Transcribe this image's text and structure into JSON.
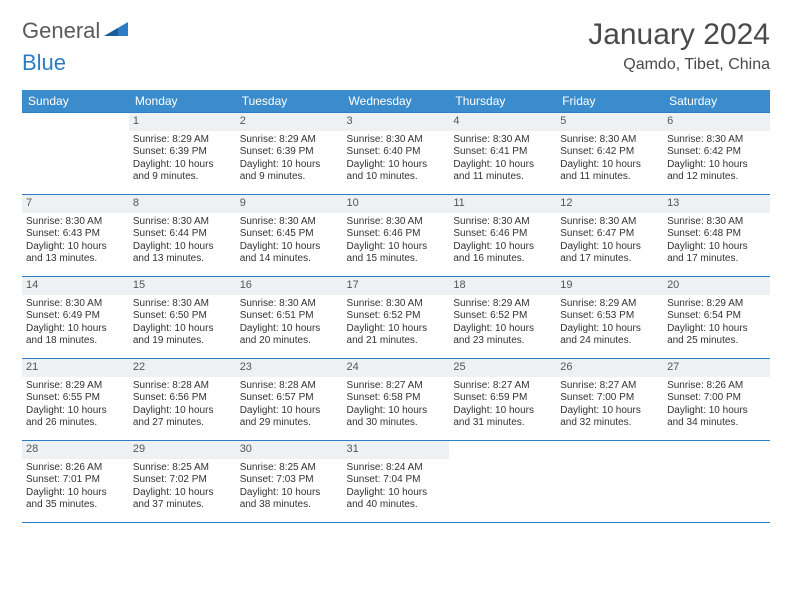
{
  "brand": {
    "part1": "General",
    "part2": "Blue"
  },
  "title": "January 2024",
  "location": "Qamdo, Tibet, China",
  "colors": {
    "header_bg": "#3a8ccc",
    "border": "#2d7dc4",
    "daynum_bg": "#eef1f3",
    "text": "#333333",
    "title_text": "#4a4a4a"
  },
  "weekdays": [
    "Sunday",
    "Monday",
    "Tuesday",
    "Wednesday",
    "Thursday",
    "Friday",
    "Saturday"
  ],
  "weeks": [
    [
      null,
      {
        "n": "1",
        "sr": "Sunrise: 8:29 AM",
        "ss": "Sunset: 6:39 PM",
        "d1": "Daylight: 10 hours",
        "d2": "and 9 minutes."
      },
      {
        "n": "2",
        "sr": "Sunrise: 8:29 AM",
        "ss": "Sunset: 6:39 PM",
        "d1": "Daylight: 10 hours",
        "d2": "and 9 minutes."
      },
      {
        "n": "3",
        "sr": "Sunrise: 8:30 AM",
        "ss": "Sunset: 6:40 PM",
        "d1": "Daylight: 10 hours",
        "d2": "and 10 minutes."
      },
      {
        "n": "4",
        "sr": "Sunrise: 8:30 AM",
        "ss": "Sunset: 6:41 PM",
        "d1": "Daylight: 10 hours",
        "d2": "and 11 minutes."
      },
      {
        "n": "5",
        "sr": "Sunrise: 8:30 AM",
        "ss": "Sunset: 6:42 PM",
        "d1": "Daylight: 10 hours",
        "d2": "and 11 minutes."
      },
      {
        "n": "6",
        "sr": "Sunrise: 8:30 AM",
        "ss": "Sunset: 6:42 PM",
        "d1": "Daylight: 10 hours",
        "d2": "and 12 minutes."
      }
    ],
    [
      {
        "n": "7",
        "sr": "Sunrise: 8:30 AM",
        "ss": "Sunset: 6:43 PM",
        "d1": "Daylight: 10 hours",
        "d2": "and 13 minutes."
      },
      {
        "n": "8",
        "sr": "Sunrise: 8:30 AM",
        "ss": "Sunset: 6:44 PM",
        "d1": "Daylight: 10 hours",
        "d2": "and 13 minutes."
      },
      {
        "n": "9",
        "sr": "Sunrise: 8:30 AM",
        "ss": "Sunset: 6:45 PM",
        "d1": "Daylight: 10 hours",
        "d2": "and 14 minutes."
      },
      {
        "n": "10",
        "sr": "Sunrise: 8:30 AM",
        "ss": "Sunset: 6:46 PM",
        "d1": "Daylight: 10 hours",
        "d2": "and 15 minutes."
      },
      {
        "n": "11",
        "sr": "Sunrise: 8:30 AM",
        "ss": "Sunset: 6:46 PM",
        "d1": "Daylight: 10 hours",
        "d2": "and 16 minutes."
      },
      {
        "n": "12",
        "sr": "Sunrise: 8:30 AM",
        "ss": "Sunset: 6:47 PM",
        "d1": "Daylight: 10 hours",
        "d2": "and 17 minutes."
      },
      {
        "n": "13",
        "sr": "Sunrise: 8:30 AM",
        "ss": "Sunset: 6:48 PM",
        "d1": "Daylight: 10 hours",
        "d2": "and 17 minutes."
      }
    ],
    [
      {
        "n": "14",
        "sr": "Sunrise: 8:30 AM",
        "ss": "Sunset: 6:49 PM",
        "d1": "Daylight: 10 hours",
        "d2": "and 18 minutes."
      },
      {
        "n": "15",
        "sr": "Sunrise: 8:30 AM",
        "ss": "Sunset: 6:50 PM",
        "d1": "Daylight: 10 hours",
        "d2": "and 19 minutes."
      },
      {
        "n": "16",
        "sr": "Sunrise: 8:30 AM",
        "ss": "Sunset: 6:51 PM",
        "d1": "Daylight: 10 hours",
        "d2": "and 20 minutes."
      },
      {
        "n": "17",
        "sr": "Sunrise: 8:30 AM",
        "ss": "Sunset: 6:52 PM",
        "d1": "Daylight: 10 hours",
        "d2": "and 21 minutes."
      },
      {
        "n": "18",
        "sr": "Sunrise: 8:29 AM",
        "ss": "Sunset: 6:52 PM",
        "d1": "Daylight: 10 hours",
        "d2": "and 23 minutes."
      },
      {
        "n": "19",
        "sr": "Sunrise: 8:29 AM",
        "ss": "Sunset: 6:53 PM",
        "d1": "Daylight: 10 hours",
        "d2": "and 24 minutes."
      },
      {
        "n": "20",
        "sr": "Sunrise: 8:29 AM",
        "ss": "Sunset: 6:54 PM",
        "d1": "Daylight: 10 hours",
        "d2": "and 25 minutes."
      }
    ],
    [
      {
        "n": "21",
        "sr": "Sunrise: 8:29 AM",
        "ss": "Sunset: 6:55 PM",
        "d1": "Daylight: 10 hours",
        "d2": "and 26 minutes."
      },
      {
        "n": "22",
        "sr": "Sunrise: 8:28 AM",
        "ss": "Sunset: 6:56 PM",
        "d1": "Daylight: 10 hours",
        "d2": "and 27 minutes."
      },
      {
        "n": "23",
        "sr": "Sunrise: 8:28 AM",
        "ss": "Sunset: 6:57 PM",
        "d1": "Daylight: 10 hours",
        "d2": "and 29 minutes."
      },
      {
        "n": "24",
        "sr": "Sunrise: 8:27 AM",
        "ss": "Sunset: 6:58 PM",
        "d1": "Daylight: 10 hours",
        "d2": "and 30 minutes."
      },
      {
        "n": "25",
        "sr": "Sunrise: 8:27 AM",
        "ss": "Sunset: 6:59 PM",
        "d1": "Daylight: 10 hours",
        "d2": "and 31 minutes."
      },
      {
        "n": "26",
        "sr": "Sunrise: 8:27 AM",
        "ss": "Sunset: 7:00 PM",
        "d1": "Daylight: 10 hours",
        "d2": "and 32 minutes."
      },
      {
        "n": "27",
        "sr": "Sunrise: 8:26 AM",
        "ss": "Sunset: 7:00 PM",
        "d1": "Daylight: 10 hours",
        "d2": "and 34 minutes."
      }
    ],
    [
      {
        "n": "28",
        "sr": "Sunrise: 8:26 AM",
        "ss": "Sunset: 7:01 PM",
        "d1": "Daylight: 10 hours",
        "d2": "and 35 minutes."
      },
      {
        "n": "29",
        "sr": "Sunrise: 8:25 AM",
        "ss": "Sunset: 7:02 PM",
        "d1": "Daylight: 10 hours",
        "d2": "and 37 minutes."
      },
      {
        "n": "30",
        "sr": "Sunrise: 8:25 AM",
        "ss": "Sunset: 7:03 PM",
        "d1": "Daylight: 10 hours",
        "d2": "and 38 minutes."
      },
      {
        "n": "31",
        "sr": "Sunrise: 8:24 AM",
        "ss": "Sunset: 7:04 PM",
        "d1": "Daylight: 10 hours",
        "d2": "and 40 minutes."
      },
      null,
      null,
      null
    ]
  ]
}
